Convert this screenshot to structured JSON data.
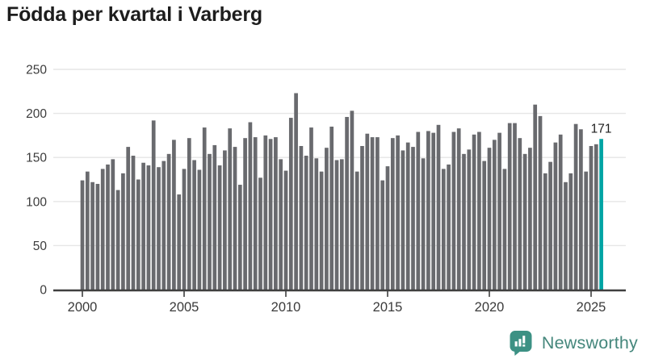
{
  "title": "Födda per kvartal i Varberg",
  "chart_data": {
    "type": "bar",
    "x_unit": "quarter",
    "start_period": "2000Q1",
    "end_period": "2025Q3",
    "values": [
      124,
      134,
      122,
      120,
      137,
      142,
      148,
      113,
      132,
      162,
      152,
      125,
      144,
      141,
      192,
      139,
      146,
      154,
      170,
      108,
      137,
      172,
      147,
      136,
      184,
      154,
      164,
      141,
      158,
      183,
      162,
      119,
      172,
      190,
      173,
      127,
      175,
      171,
      173,
      148,
      135,
      195,
      223,
      163,
      152,
      184,
      149,
      134,
      161,
      185,
      147,
      148,
      196,
      203,
      134,
      163,
      177,
      173,
      173,
      124,
      140,
      172,
      175,
      158,
      167,
      162,
      179,
      149,
      180,
      178,
      187,
      137,
      142,
      179,
      183,
      154,
      159,
      176,
      179,
      146,
      161,
      170,
      178,
      137,
      189,
      189,
      172,
      154,
      161,
      210,
      197,
      132,
      145,
      167,
      176,
      122,
      132,
      188,
      182,
      134,
      163,
      165,
      171
    ],
    "highlight_index": 102,
    "highlight_value_label": "171",
    "yticks": [
      0,
      50,
      100,
      150,
      200,
      250
    ],
    "xticks": [
      2000,
      2005,
      2010,
      2015,
      2020,
      2025
    ],
    "ylim": [
      0,
      250
    ],
    "grid": true,
    "legend": "none",
    "bar_color": "#696a6e",
    "highlight_color": "#00a4a4",
    "grid_color": "#e6e6e6",
    "axis_color": "#3f3f3f",
    "label_color": "#3b3b3b"
  },
  "branding": {
    "logo_text": "Newsworthy",
    "logo_icon": "newsworthy-chart-bubble-icon",
    "icon_color": "#3c9184",
    "text_color": "#45877c"
  }
}
